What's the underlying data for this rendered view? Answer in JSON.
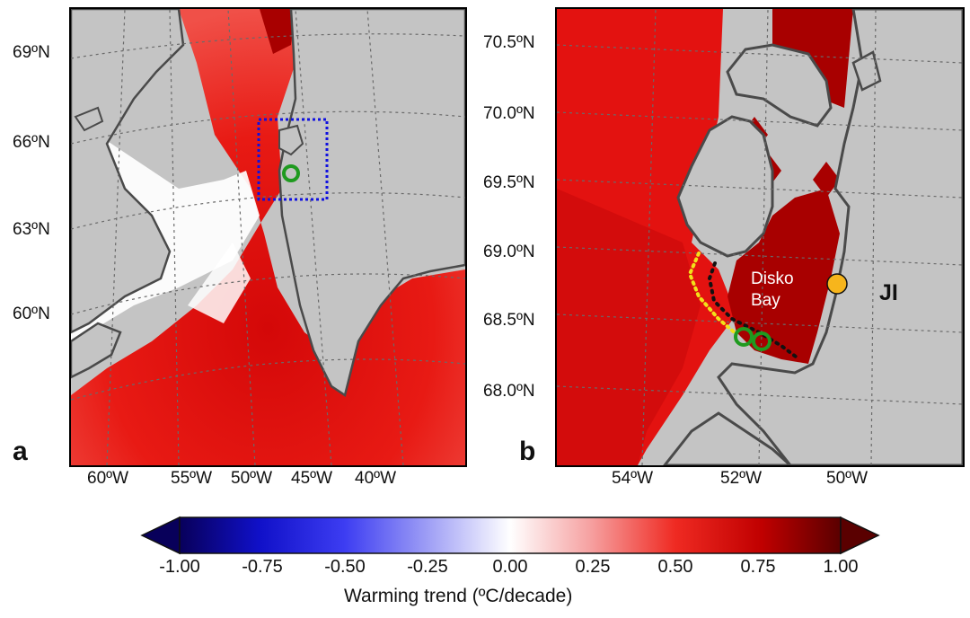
{
  "panels": {
    "a": {
      "letter": "a",
      "lat_labels": [
        "69ºN",
        "66ºN",
        "63ºN",
        "60ºN"
      ],
      "lon_labels": [
        "60ºW",
        "55ºW",
        "50ºW",
        "45ºW",
        "40ºW"
      ]
    },
    "b": {
      "letter": "b",
      "lat_labels": [
        "70.5ºN",
        "70.0ºN",
        "69.5ºN",
        "69.0ºN",
        "68.5ºN",
        "68.0ºN"
      ],
      "lon_labels": [
        "54ºW",
        "52ºW",
        "50ºW"
      ],
      "region_label_line1": "Disko",
      "region_label_line2": "Bay",
      "site_label": "JI"
    }
  },
  "colorbar": {
    "ticks": [
      "-1.00",
      "-0.75",
      "-0.50",
      "-0.25",
      "0.00",
      "0.25",
      "0.50",
      "0.75",
      "1.00"
    ],
    "title": "Warming trend (ºC/decade)",
    "range": [
      -1.0,
      1.0
    ],
    "colors": {
      "min": "#08005a",
      "mid": "#ffffff",
      "max": "#5a0000"
    }
  },
  "map_colors": {
    "land": "#c4c4c4",
    "coast": "#4a4a4a",
    "warm": "#e8100f",
    "strong_warm": "#a80000",
    "box": "#1010e0",
    "site_marker": "#f7b51c",
    "glacier_marker": "#1f9a1f",
    "track_yellow": "#f2e21a",
    "track_black": "#111111"
  }
}
